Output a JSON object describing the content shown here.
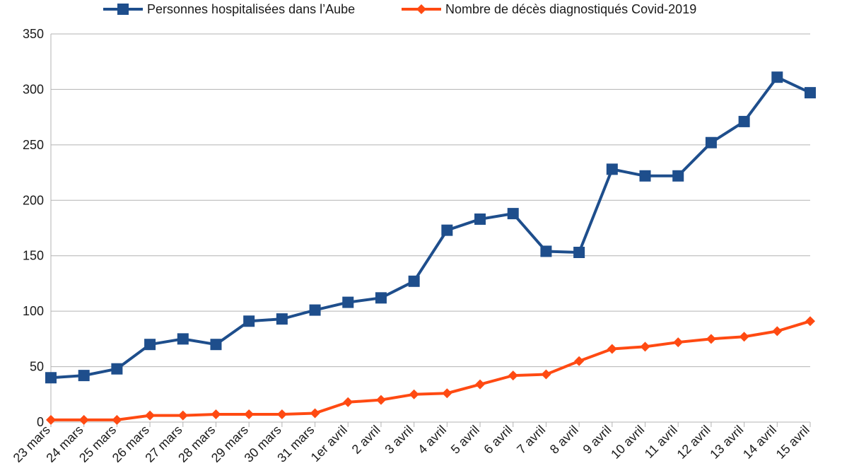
{
  "chart_data": {
    "type": "line",
    "title": "",
    "xlabel": "",
    "ylabel": "",
    "ylim": [
      0,
      350
    ],
    "yticks": [
      0,
      50,
      100,
      150,
      200,
      250,
      300,
      350
    ],
    "grid": true,
    "legend_position": "top",
    "categories": [
      "23 mars",
      "24 mars",
      "25 mars",
      "26 mars",
      "27 mars",
      "28 mars",
      "29 mars",
      "30 mars",
      "31 mars",
      "1er avril",
      "2 avril",
      "3 avril",
      "4 avril",
      "5 avril",
      "6 avril",
      "7 avril",
      "8 avril",
      "9 avril",
      "10 avril",
      "11 avril",
      "12 avril",
      "13 avril",
      "14 avril",
      "15 avril"
    ],
    "series": [
      {
        "name": "Personnes hospitalisées dans l’Aube",
        "color": "#1e4e8c",
        "marker": "square",
        "values": [
          40,
          42,
          48,
          70,
          75,
          70,
          91,
          93,
          101,
          108,
          112,
          127,
          173,
          183,
          188,
          154,
          153,
          228,
          222,
          222,
          252,
          271,
          311,
          297
        ]
      },
      {
        "name": "Nombre de décès diagnostiqués Covid-2019",
        "color": "#ff4a12",
        "marker": "diamond",
        "values": [
          2,
          2,
          2,
          6,
          6,
          7,
          7,
          7,
          8,
          18,
          20,
          25,
          26,
          34,
          42,
          43,
          55,
          66,
          68,
          72,
          75,
          77,
          82,
          91
        ]
      }
    ]
  }
}
